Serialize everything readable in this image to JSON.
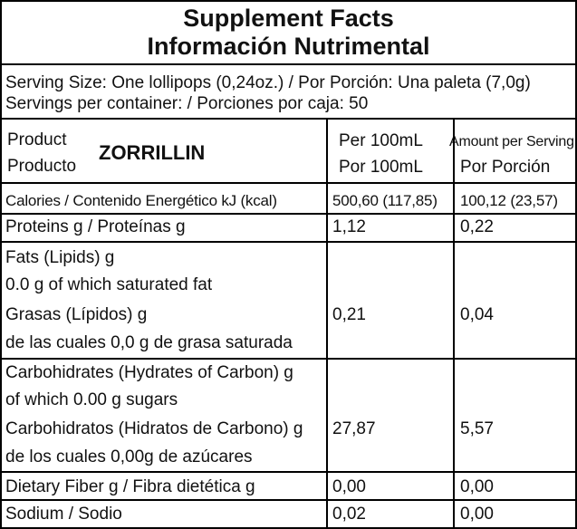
{
  "header": {
    "title_en": "Supplement Facts",
    "title_es": "Información Nutrimental"
  },
  "serving": {
    "size": "Serving Size: One lollipops (0,24oz.) / Por Porción: Una paleta (7,0g)",
    "per_container": "Servings per container: / Porciones por caja: 50"
  },
  "product": {
    "label_en": "Product",
    "label_es": "Producto",
    "name": "ZORRILLIN",
    "col1_en": "Per 100mL",
    "col1_es": "Por 100mL",
    "col2_en": "Amount per Serving",
    "col2_es": "Por Porción"
  },
  "rows": [
    {
      "lines": [
        "Calories / Contenido Energético  kJ (kcal)"
      ],
      "per100": "500,60 (117,85)",
      "serving": "100,12 (23,57)"
    },
    {
      "lines": [
        "Proteins g / Proteínas g"
      ],
      "per100": "1,12",
      "serving": "0,22"
    },
    {
      "lines": [
        "Fats (Lipids) g",
        "0.0 g of which saturated fat",
        "Grasas (Lípidos) g",
        "de las cuales 0,0 g de grasa saturada"
      ],
      "per100": "0,21",
      "serving": "0,04"
    },
    {
      "lines": [
        "Carbohidrates (Hydrates of Carbon) g",
        "of which 0.00 g sugars",
        "Carbohidratos (Hidratos de Carbono) g",
        "de los cuales 0,00g de azúcares"
      ],
      "per100": "27,87",
      "serving": "5,57"
    },
    {
      "lines": [
        "Dietary Fiber g / Fibra dietética g"
      ],
      "per100": "0,00",
      "serving": "0,00"
    },
    {
      "lines": [
        "Sodium / Sodio"
      ],
      "per100": "0,02",
      "serving": "0,00"
    }
  ]
}
